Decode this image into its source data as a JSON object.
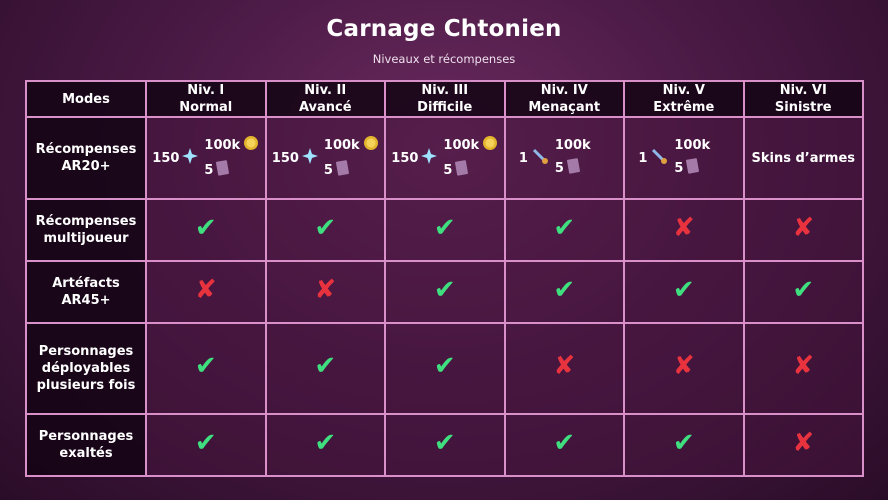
{
  "title": "Carnage Chtonien",
  "subtitle": "Niveaux et récompenses",
  "header": [
    "Modes",
    [
      "Niv. I",
      "Normal"
    ],
    [
      "Niv. II",
      "Avancé"
    ],
    [
      "Niv. III",
      "Difficile"
    ],
    [
      "Niv. IV",
      "Menaçant"
    ],
    [
      "Niv. V",
      "Extrême"
    ],
    [
      "Niv. VI",
      "Sinistre"
    ]
  ],
  "rewards": {
    "label": [
      "Récompenses",
      "AR20+"
    ],
    "cells": [
      {
        "left": "150",
        "left_icon": "primogem-icon",
        "top": "100k",
        "top_icon": "mora-coin-icon",
        "bottom": "5",
        "bottom_icon": "book-icon"
      },
      {
        "left": "150",
        "left_icon": "primogem-icon",
        "top": "100k",
        "top_icon": "mora-coin-icon",
        "bottom": "5",
        "bottom_icon": "book-icon"
      },
      {
        "left": "150",
        "left_icon": "primogem-icon",
        "top": "100k",
        "top_icon": "mora-coin-icon",
        "bottom": "5",
        "bottom_icon": "book-icon"
      },
      {
        "left": "1",
        "left_icon": "weapon-icon",
        "top": "100k",
        "bottom": "5",
        "bottom_icon": "book-icon"
      },
      {
        "left": "1",
        "left_icon": "weapon-icon",
        "top": "100k",
        "bottom": "5",
        "bottom_icon": "book-icon"
      },
      {
        "text": "Skins d’armes"
      }
    ]
  },
  "rows": [
    {
      "label": [
        "Récompenses",
        "multijoueur"
      ],
      "values": [
        true,
        true,
        true,
        true,
        false,
        false
      ]
    },
    {
      "label": [
        "Artéfacts",
        "AR45+"
      ],
      "values": [
        false,
        false,
        true,
        true,
        true,
        true
      ]
    },
    {
      "label": [
        "Personnages",
        "déployables",
        "plusieurs fois"
      ],
      "values": [
        true,
        true,
        true,
        false,
        false,
        false
      ]
    },
    {
      "label": [
        "Personnages",
        "exaltés"
      ],
      "values": [
        true,
        true,
        true,
        true,
        true,
        false
      ]
    }
  ],
  "colors": {
    "border": "#d98fc8",
    "check": "#3fdf7f",
    "cross": "#e8333f"
  }
}
